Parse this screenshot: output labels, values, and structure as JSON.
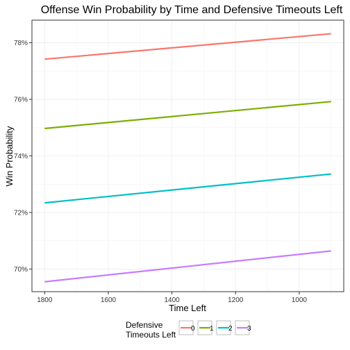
{
  "chart_data": {
    "type": "line",
    "title": "Offense Win Probability by Time and Defensive Timeouts Left",
    "xlabel": "Time Left",
    "ylabel": "Win Probability",
    "x_reversed": true,
    "xlim": [
      1840,
      860
    ],
    "ylim": [
      69.2,
      78.8
    ],
    "x_ticks": [
      1800,
      1600,
      1400,
      1200,
      1000
    ],
    "y_ticks": [
      70,
      72,
      74,
      76,
      78
    ],
    "y_tick_labels": [
      "70%",
      "72%",
      "74%",
      "76%",
      "78%"
    ],
    "grid": true,
    "legend": {
      "title_line1": "Defensive",
      "title_line2": "Timeouts Left",
      "placement": "bottom"
    },
    "x": [
      1800,
      900
    ],
    "series": [
      {
        "name": "0",
        "color": "#F8766D",
        "values": [
          77.42,
          78.32
        ]
      },
      {
        "name": "1",
        "color": "#7CAE00",
        "values": [
          74.97,
          75.92
        ]
      },
      {
        "name": "2",
        "color": "#00BFC4",
        "values": [
          72.34,
          73.36
        ]
      },
      {
        "name": "3",
        "color": "#C77CFF",
        "values": [
          69.55,
          70.64
        ]
      }
    ]
  }
}
